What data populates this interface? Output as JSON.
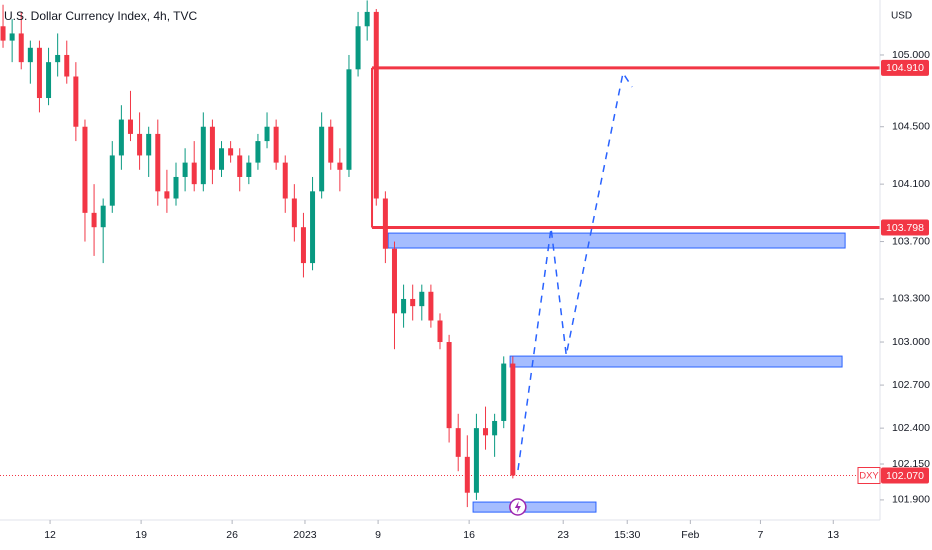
{
  "chart_data": {
    "type": "candlestick",
    "title": "U.S. Dollar Currency Index, 4h, TVC",
    "currency": "USD",
    "symbol": "DXY",
    "up_color": "#089981",
    "down_color": "#f23645",
    "x": [
      1,
      4,
      7,
      10,
      13,
      16,
      19,
      22,
      25,
      28,
      31,
      34,
      37,
      40,
      43,
      46,
      49,
      52,
      55,
      58,
      61,
      64,
      67,
      70,
      73,
      76,
      79,
      82,
      85,
      88,
      91,
      94,
      97,
      100,
      103,
      106,
      109,
      112,
      115,
      118,
      121,
      124,
      127,
      130,
      133,
      136,
      139,
      142,
      145,
      148,
      151,
      154,
      157,
      160,
      163,
      166,
      169
    ],
    "open": [
      105.2,
      105.1,
      105.15,
      104.95,
      105.05,
      104.7,
      104.95,
      105.0,
      104.85,
      104.5,
      103.9,
      103.8,
      103.95,
      104.3,
      104.55,
      104.45,
      104.3,
      104.45,
      104.05,
      104.0,
      104.15,
      104.25,
      104.1,
      104.5,
      104.2,
      104.35,
      104.3,
      104.15,
      104.25,
      104.4,
      104.5,
      104.25,
      104.0,
      103.8,
      103.55,
      104.05,
      104.5,
      104.25,
      104.2,
      104.9,
      105.2,
      105.3,
      104.0,
      103.65,
      103.2,
      103.3,
      103.25,
      103.35,
      103.15,
      103.0,
      102.4,
      102.2,
      101.95,
      102.4,
      102.35,
      102.45,
      102.85
    ],
    "high": [
      105.35,
      105.25,
      105.3,
      105.1,
      105.1,
      105.05,
      105.15,
      105.1,
      104.95,
      104.55,
      104.1,
      104.0,
      104.4,
      104.65,
      104.75,
      104.6,
      104.5,
      104.55,
      104.2,
      104.25,
      104.35,
      104.4,
      104.6,
      104.55,
      104.4,
      104.4,
      104.35,
      104.3,
      104.45,
      104.6,
      104.55,
      104.3,
      104.1,
      103.9,
      104.15,
      104.6,
      104.55,
      104.35,
      105.0,
      105.3,
      105.38,
      105.32,
      104.05,
      103.7,
      103.4,
      103.4,
      103.4,
      103.4,
      103.2,
      103.05,
      102.5,
      102.35,
      102.5,
      102.55,
      102.5,
      102.9,
      102.9
    ],
    "low": [
      105.05,
      104.95,
      104.9,
      104.8,
      104.6,
      104.65,
      104.85,
      104.8,
      104.4,
      103.7,
      103.6,
      103.55,
      103.9,
      104.2,
      104.4,
      104.2,
      104.15,
      103.95,
      103.9,
      103.95,
      104.05,
      104.05,
      104.05,
      104.1,
      104.15,
      104.25,
      104.05,
      104.1,
      104.2,
      104.35,
      104.2,
      103.9,
      103.7,
      103.45,
      103.5,
      104.0,
      104.2,
      104.05,
      104.15,
      104.85,
      105.1,
      103.95,
      103.55,
      102.95,
      103.1,
      103.15,
      103.15,
      103.1,
      102.95,
      102.3,
      102.1,
      101.85,
      101.9,
      102.25,
      102.2,
      102.4,
      102.05
    ],
    "close": [
      105.1,
      105.15,
      104.95,
      105.05,
      104.7,
      104.95,
      105.0,
      104.85,
      104.5,
      103.9,
      103.8,
      103.95,
      104.3,
      104.55,
      104.45,
      104.3,
      104.45,
      104.05,
      104.0,
      104.15,
      104.25,
      104.1,
      104.5,
      104.2,
      104.35,
      104.3,
      104.15,
      104.25,
      104.4,
      104.5,
      104.25,
      104.0,
      103.8,
      103.55,
      104.05,
      104.5,
      104.25,
      104.2,
      104.9,
      105.2,
      105.3,
      104.0,
      103.65,
      103.2,
      103.3,
      103.25,
      103.35,
      103.15,
      103.0,
      102.4,
      102.2,
      101.95,
      102.4,
      102.35,
      102.45,
      102.85,
      102.07
    ],
    "xlim": [
      0,
      290
    ],
    "ylim": [
      101.76,
      105.383
    ],
    "xticks": [
      {
        "value": 16.5,
        "label": "12"
      },
      {
        "value": 46.5,
        "label": "19"
      },
      {
        "value": 76.5,
        "label": "26"
      },
      {
        "value": 100.5,
        "label": "2023"
      },
      {
        "value": 124.6,
        "label": "9"
      },
      {
        "value": 154.6,
        "label": "16"
      },
      {
        "value": 185.6,
        "label": "23"
      },
      {
        "value": 206.7,
        "label": "15:30"
      },
      {
        "value": 227.5,
        "label": "Feb"
      },
      {
        "value": 250.6,
        "label": "7"
      },
      {
        "value": 274.6,
        "label": "13"
      }
    ],
    "yticks": [
      {
        "value": 105.0,
        "label": "105.000"
      },
      {
        "value": 104.5,
        "label": "104.500"
      },
      {
        "value": 104.1,
        "label": "104.100"
      },
      {
        "value": 103.7,
        "label": "103.700"
      },
      {
        "value": 103.3,
        "label": "103.300"
      },
      {
        "value": 103.0,
        "label": "103.000"
      },
      {
        "value": 102.7,
        "label": "102.700"
      },
      {
        "value": 102.4,
        "label": "102.400"
      },
      {
        "value": 102.15,
        "label": "102.150"
      },
      {
        "value": 101.9,
        "label": "101.900"
      }
    ],
    "levels": [
      {
        "value": 104.91,
        "label": "104.910",
        "start_x": 122.6
      },
      {
        "value": 103.798,
        "label": "103.798",
        "start_x": 122.6
      }
    ],
    "last": {
      "value": 102.07,
      "label": "102.070"
    },
    "zones": [
      {
        "x0": 127.9,
        "x1": 278.5,
        "top": 103.759,
        "bottom": 103.655
      },
      {
        "x0": 168.1,
        "x1": 277.5,
        "top": 102.902,
        "bottom": 102.826
      },
      {
        "x0": 155.9,
        "x1": 196.4,
        "top": 101.885,
        "bottom": 101.815
      }
    ],
    "projection": {
      "x": [
        170.7,
        181.6,
        186.6,
        205.3,
        208.3
      ],
      "y": [
        102.108,
        103.794,
        102.909,
        104.874,
        104.777
      ]
    }
  }
}
